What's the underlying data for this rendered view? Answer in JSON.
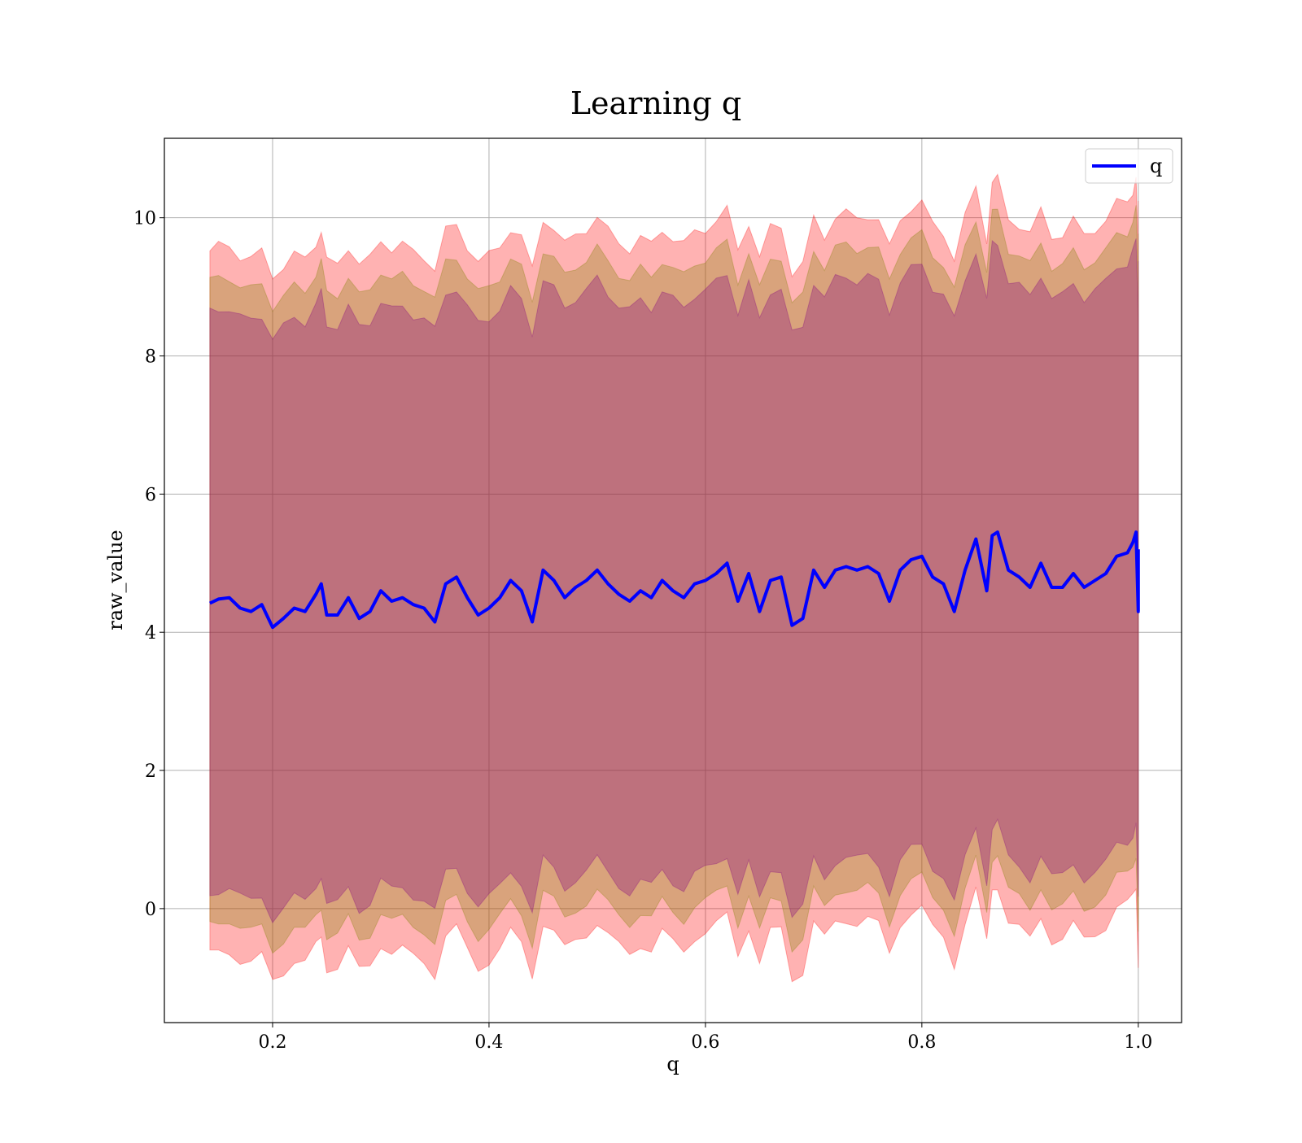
{
  "chart_data": {
    "type": "line",
    "title": "Learning q",
    "xlabel": "q",
    "ylabel": "raw_value",
    "xlim": [
      0.1,
      1.04
    ],
    "ylim": [
      -1.65,
      11.15
    ],
    "xticks": [
      0.2,
      0.4,
      0.6,
      0.8,
      1.0
    ],
    "xtick_labels": [
      "0.2",
      "0.4",
      "0.6",
      "0.8",
      "1.0"
    ],
    "yticks": [
      0,
      2,
      4,
      6,
      8,
      10
    ],
    "ytick_labels": [
      "0",
      "2",
      "4",
      "6",
      "8",
      "10"
    ],
    "grid": true,
    "legend": {
      "position": "top-right",
      "entries": [
        "q"
      ]
    },
    "bands": [
      {
        "half_width": 5.1,
        "color": "#ff0000",
        "opacity": 0.3
      },
      {
        "half_width": 4.65,
        "color": "#808000",
        "opacity": 0.3
      },
      {
        "half_width": 4.2,
        "color": "#800080",
        "opacity": 0.3
      }
    ],
    "series": [
      {
        "name": "q",
        "color": "#0000ff",
        "x": [
          0.142,
          0.15,
          0.16,
          0.17,
          0.18,
          0.19,
          0.2,
          0.21,
          0.22,
          0.23,
          0.24,
          0.245,
          0.25,
          0.26,
          0.27,
          0.28,
          0.29,
          0.3,
          0.31,
          0.32,
          0.33,
          0.34,
          0.35,
          0.36,
          0.37,
          0.38,
          0.39,
          0.4,
          0.41,
          0.42,
          0.43,
          0.44,
          0.45,
          0.46,
          0.47,
          0.48,
          0.49,
          0.5,
          0.51,
          0.52,
          0.53,
          0.54,
          0.55,
          0.56,
          0.57,
          0.58,
          0.59,
          0.6,
          0.61,
          0.62,
          0.63,
          0.64,
          0.65,
          0.66,
          0.67,
          0.68,
          0.69,
          0.7,
          0.71,
          0.72,
          0.73,
          0.74,
          0.75,
          0.76,
          0.77,
          0.78,
          0.79,
          0.8,
          0.81,
          0.82,
          0.83,
          0.84,
          0.85,
          0.86,
          0.865,
          0.87,
          0.88,
          0.89,
          0.9,
          0.91,
          0.92,
          0.93,
          0.94,
          0.95,
          0.96,
          0.97,
          0.98,
          0.99,
          0.995,
          0.998,
          1.0,
          1.0
        ],
        "y": [
          4.42,
          4.48,
          4.5,
          4.35,
          4.3,
          4.4,
          4.07,
          4.2,
          4.35,
          4.3,
          4.55,
          4.7,
          4.25,
          4.25,
          4.5,
          4.2,
          4.3,
          4.6,
          4.45,
          4.5,
          4.4,
          4.35,
          4.15,
          4.7,
          4.8,
          4.5,
          4.25,
          4.35,
          4.5,
          4.75,
          4.6,
          4.15,
          4.9,
          4.75,
          4.5,
          4.65,
          4.75,
          4.9,
          4.7,
          4.55,
          4.45,
          4.6,
          4.5,
          4.75,
          4.6,
          4.5,
          4.7,
          4.75,
          4.85,
          5.0,
          4.45,
          4.85,
          4.3,
          4.75,
          4.8,
          4.1,
          4.2,
          4.9,
          4.65,
          4.9,
          4.95,
          4.9,
          4.95,
          4.85,
          4.45,
          4.9,
          5.05,
          5.1,
          4.8,
          4.7,
          4.3,
          4.9,
          5.35,
          4.6,
          5.4,
          5.45,
          4.9,
          4.8,
          4.65,
          5.0,
          4.65,
          4.65,
          4.85,
          4.65,
          4.75,
          4.85,
          5.1,
          5.15,
          5.3,
          5.45,
          4.3,
          5.2
        ]
      }
    ]
  }
}
